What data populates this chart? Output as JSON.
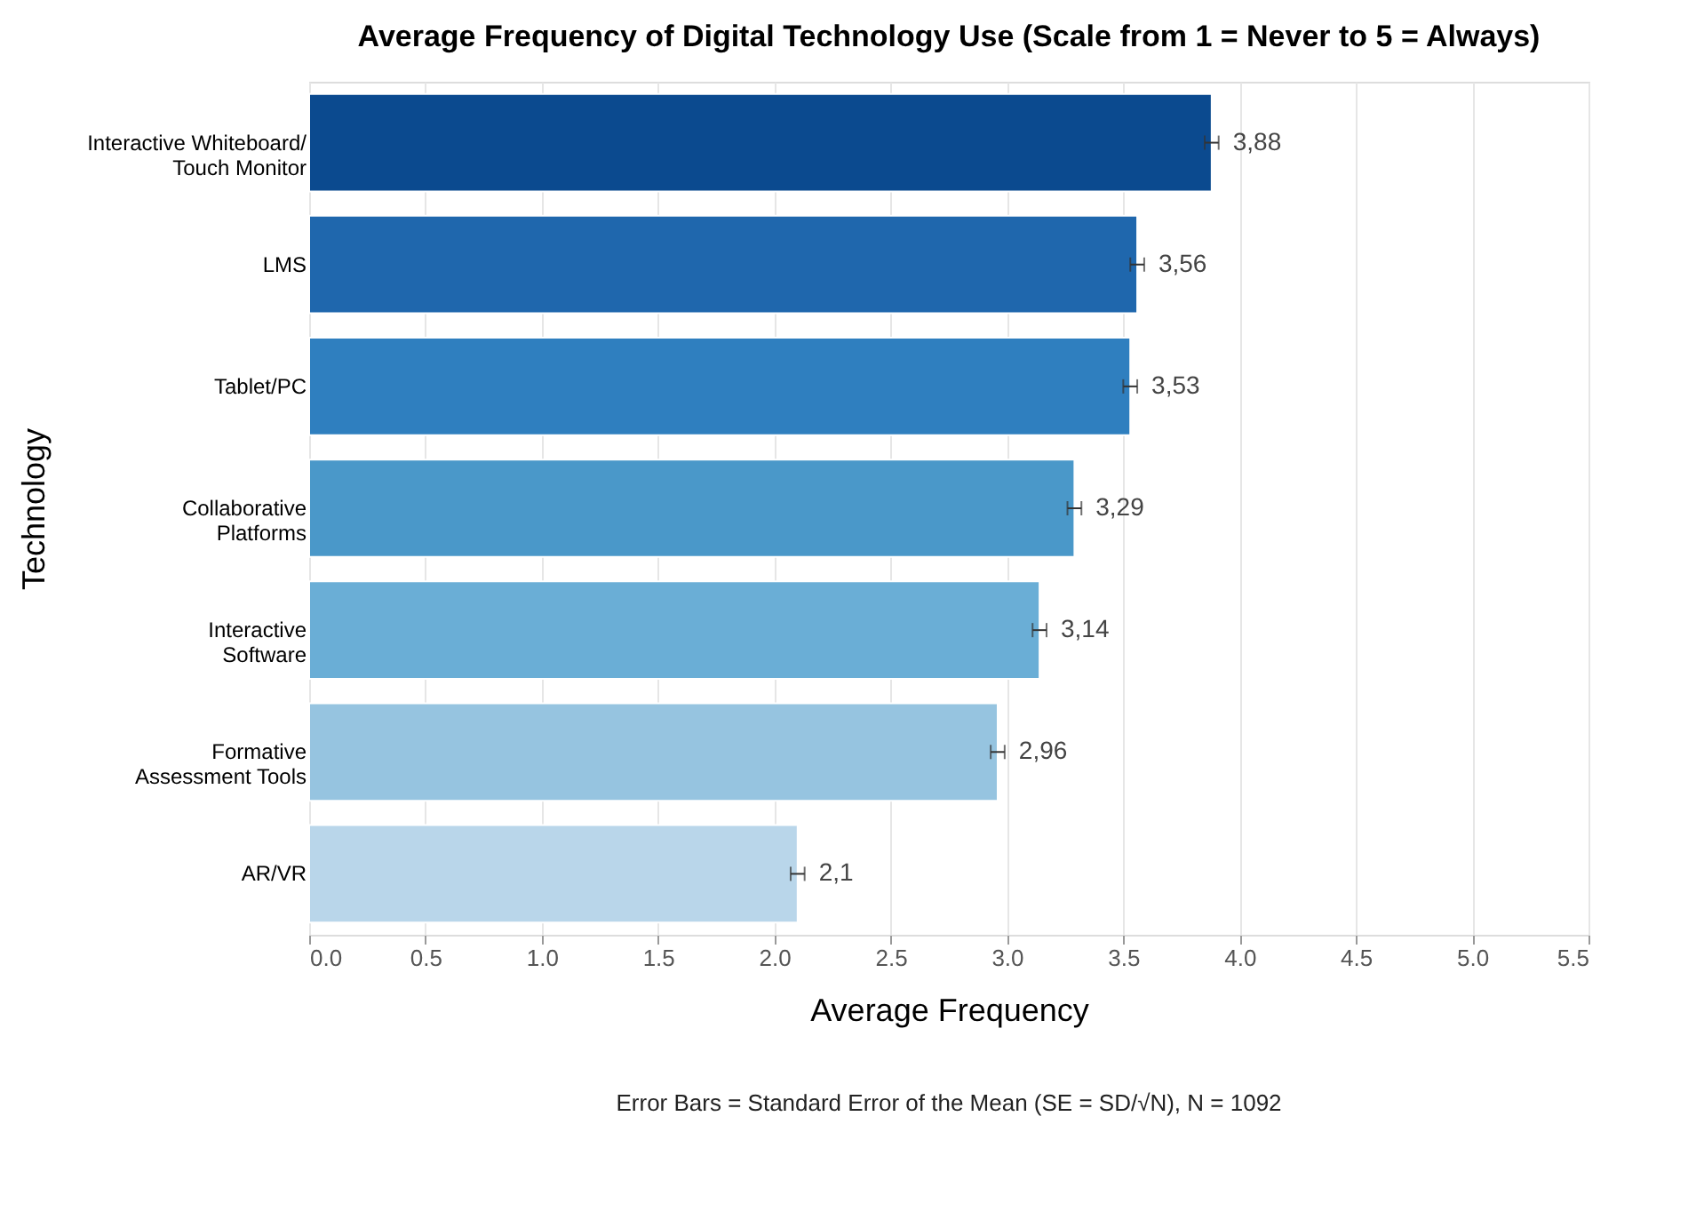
{
  "chart_data": {
    "type": "bar",
    "orientation": "horizontal",
    "title": "Average Frequency of Digital Technology Use (Scale from 1 = Never to 5 = Always)",
    "xlabel": "Average Frequency",
    "ylabel": "Technology",
    "categories": [
      "Interactive Whiteboard/\nTouch Monitor",
      "LMS",
      "Tablet/PC",
      "Collaborative\nPlatforms",
      "Interactive\nSoftware",
      "Formative\nAssessment Tools",
      "AR/VR"
    ],
    "values": [
      3.88,
      3.56,
      3.53,
      3.29,
      3.14,
      2.96,
      2.1
    ],
    "colors": [
      "#0b4a8f",
      "#1f67ad",
      "#2f7fbf",
      "#4a98c9",
      "#6aaed6",
      "#96c4e0",
      "#b9d6ea"
    ],
    "errors": [
      0.03,
      0.03,
      0.03,
      0.03,
      0.03,
      0.03,
      0.03
    ],
    "value_labels": [
      "3,88",
      "3,56",
      "3,53",
      "3,29",
      "3,14",
      "2,96",
      "2,1"
    ],
    "xlim": [
      0,
      5.5
    ],
    "xticks": [
      {
        "value": 0,
        "label": "0.0"
      },
      0.5,
      {
        "value": 1,
        "label": "1.0"
      },
      1.5,
      {
        "value": 2,
        "label": "2.0"
      },
      2.5,
      {
        "value": 3,
        "label": "3.0"
      },
      3.5,
      {
        "value": 4,
        "label": "4.0"
      },
      4.5,
      {
        "value": 5,
        "label": "5.0"
      },
      5.5
    ],
    "grid": "x",
    "annotations": [
      "Error Bars = Standard Error of the Mean (SE = SD/√N), N = 1092"
    ]
  }
}
